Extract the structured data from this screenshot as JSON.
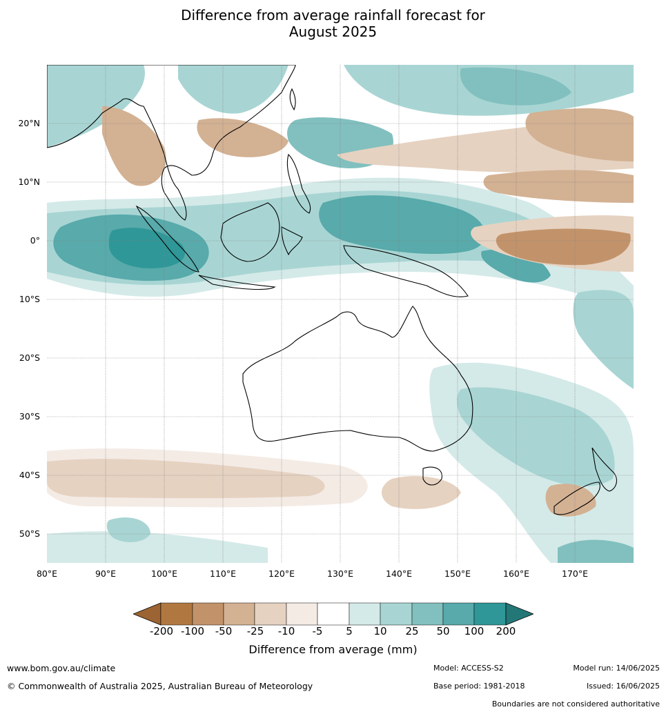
{
  "title_line1": "Difference from average rainfall forecast for",
  "title_line2": "August 2025",
  "map": {
    "lat_labels": [
      "20°N",
      "10°N",
      "0°",
      "10°S",
      "20°S",
      "30°S",
      "40°S",
      "50°S"
    ],
    "lon_labels": [
      "80°E",
      "90°E",
      "100°E",
      "110°E",
      "120°E",
      "130°E",
      "140°E",
      "150°E",
      "160°E",
      "170°E"
    ],
    "extent": {
      "lon": [
        80,
        180
      ],
      "lat": [
        -55,
        30
      ]
    }
  },
  "legend": {
    "title": "Difference from average (mm)",
    "ticks": [
      "-200",
      "-100",
      "-50",
      "-25",
      "-10",
      "-5",
      "5",
      "10",
      "25",
      "50",
      "100",
      "200"
    ],
    "colors": [
      "#9c6433",
      "#b07840",
      "#c2936a",
      "#d3b193",
      "#e6d2c1",
      "#f4ebe5",
      "#ffffff",
      "#d4eae8",
      "#a8d5d3",
      "#81c0bf",
      "#58aaab",
      "#2f9797",
      "#247777"
    ]
  },
  "footer": {
    "website": "www.bom.gov.au/climate",
    "copyright": "© Commonwealth of Australia 2025, Australian Bureau of Meteorology",
    "model": "Model: ACCESS-S2",
    "base_period": "Base period: 1981-2018",
    "model_run": "Model run: 14/06/2025",
    "issued": "Issued: 16/06/2025",
    "boundaries": "Boundaries are not considered authoritative"
  }
}
